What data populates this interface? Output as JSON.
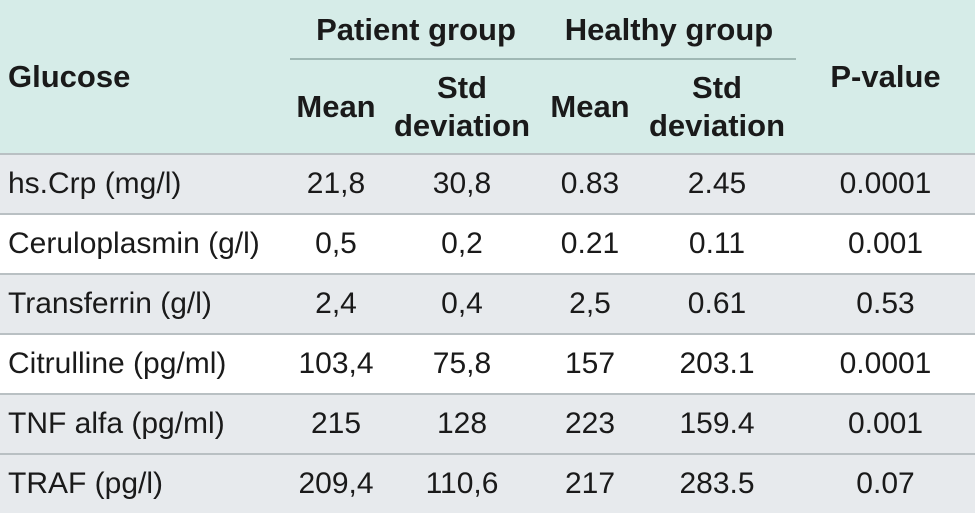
{
  "header": {
    "row_label": "Glucose",
    "patient_group": "Patient group",
    "healthy_group": "Healthy group",
    "pvalue": "P-value",
    "mean": "Mean",
    "std_line1": "Std",
    "std_line2": "deviation"
  },
  "rows": [
    {
      "name": "hs.Crp (mg/l)",
      "p_mean": "21,8",
      "p_std": "30,8",
      "h_mean": "0.83",
      "h_std": "2.45",
      "p": "0.0001"
    },
    {
      "name": "Ceruloplasmin (g/l)",
      "p_mean": "0,5",
      "p_std": "0,2",
      "h_mean": "0.21",
      "h_std": "0.11",
      "p": "0.001"
    },
    {
      "name": "Transferrin (g/l)",
      "p_mean": "2,4",
      "p_std": "0,4",
      "h_mean": "2,5",
      "h_std": "0.61",
      "p": "0.53"
    },
    {
      "name": "Citrulline (pg/ml)",
      "p_mean": "103,4",
      "p_std": "75,8",
      "h_mean": "157",
      "h_std": "203.1",
      "p": "0.0001"
    },
    {
      "name": "TNF alfa (pg/ml)",
      "p_mean": "215",
      "p_std": "128",
      "h_mean": "223",
      "h_std": "159.4",
      "p": "0.001"
    },
    {
      "name": "TRAF (pg/l)",
      "p_mean": "209,4",
      "p_std": "110,6",
      "h_mean": "217",
      "h_std": "283.5",
      "p": "0.07"
    }
  ],
  "colors": {
    "header_bg": "#d6ece8",
    "shaded_row": "#e7eaed"
  }
}
